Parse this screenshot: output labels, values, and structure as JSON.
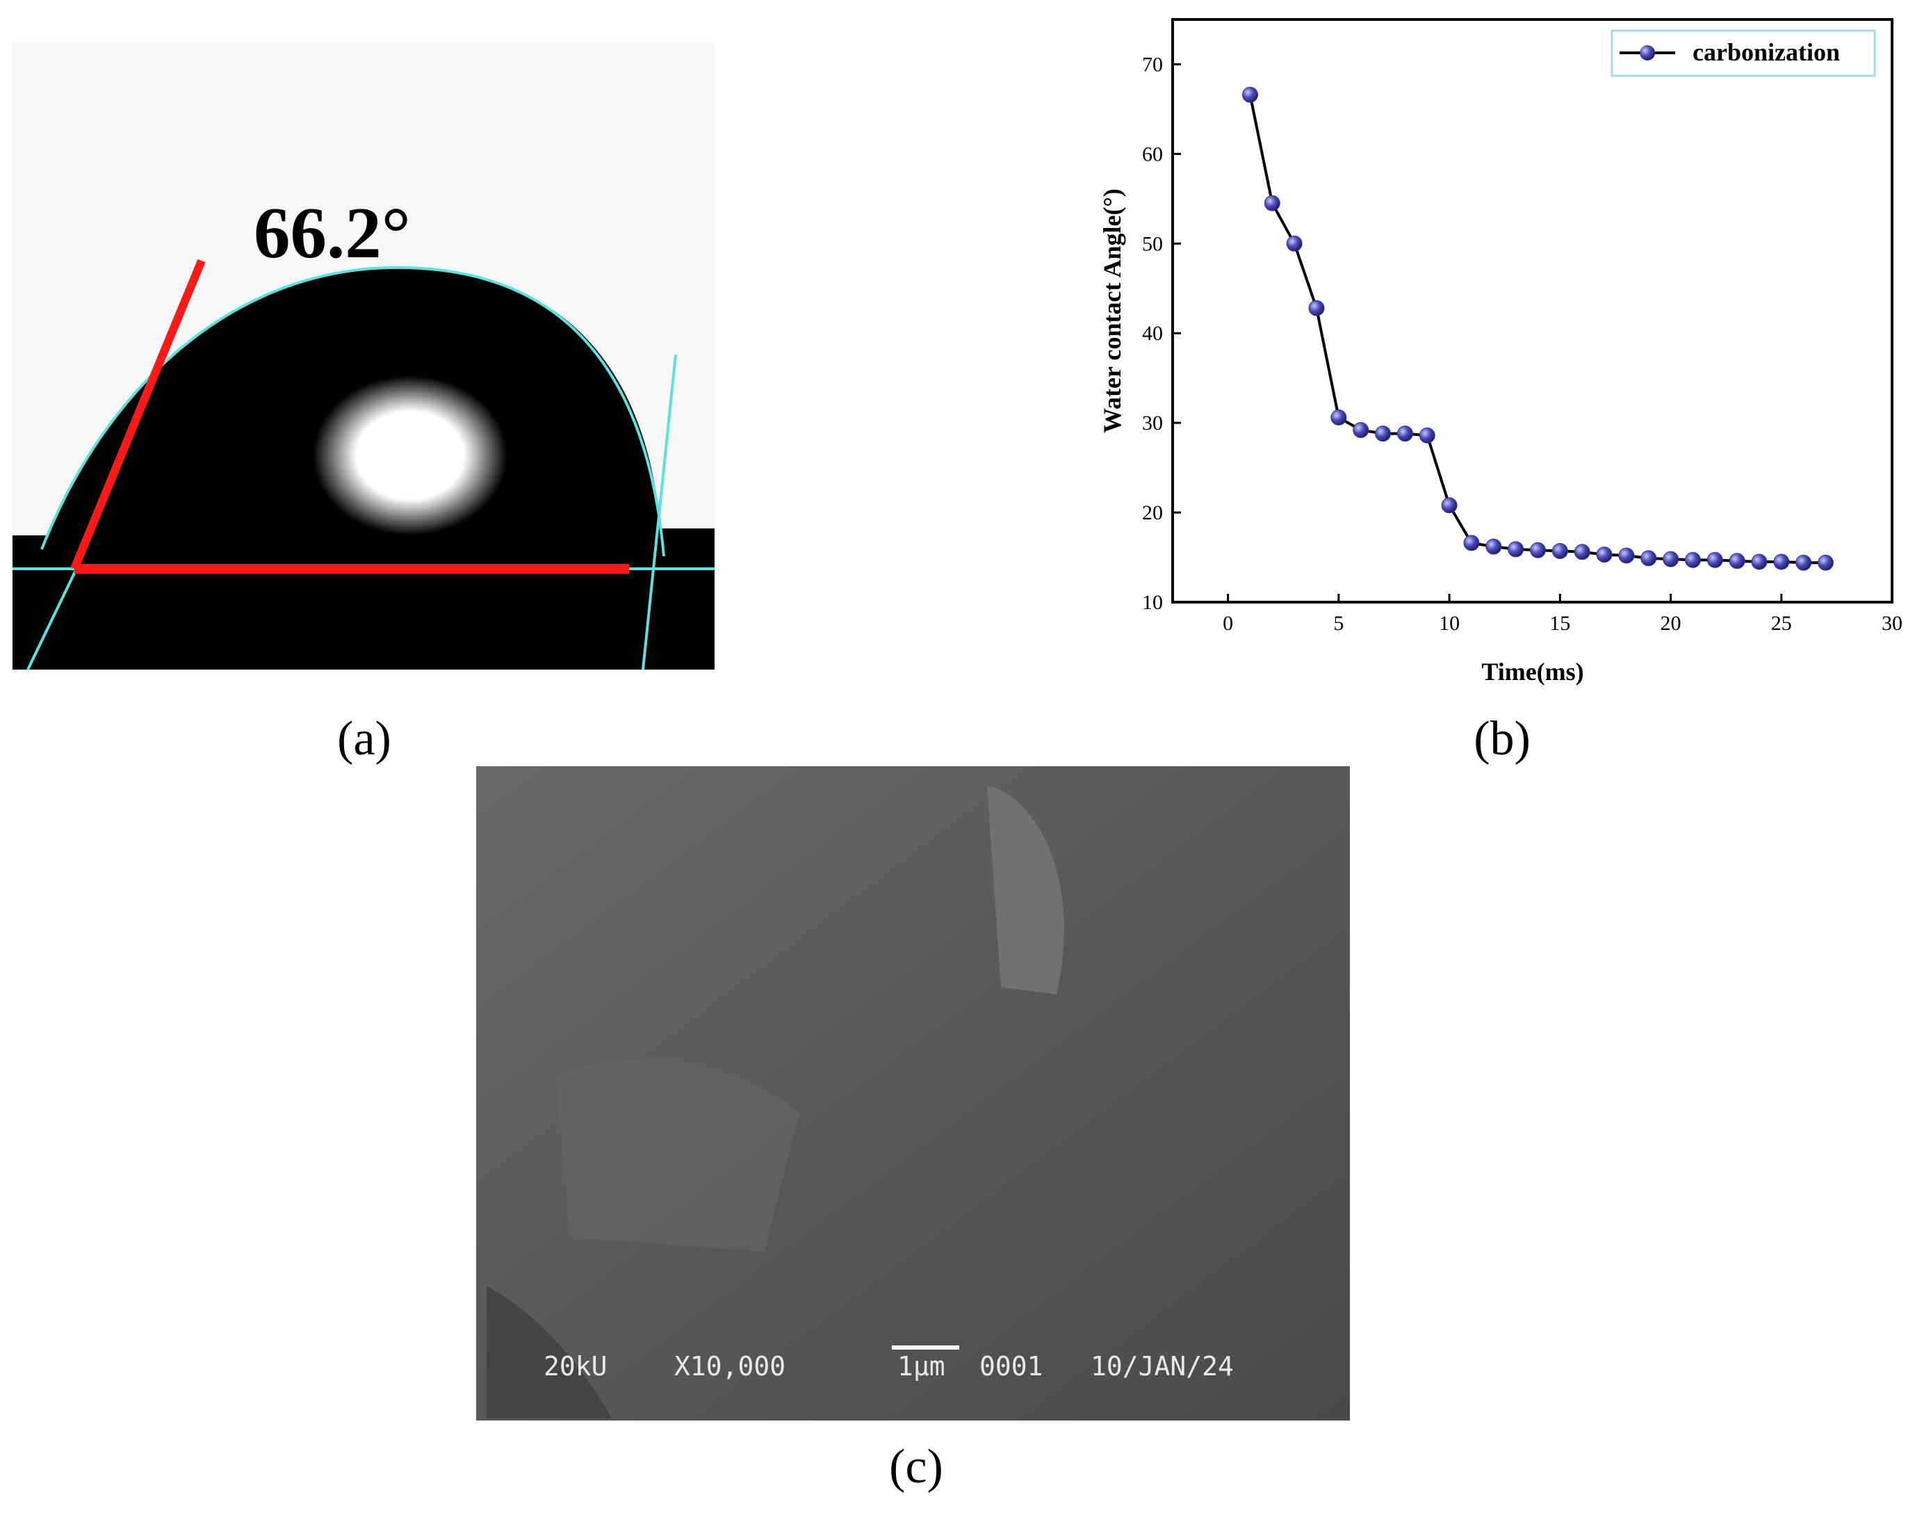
{
  "chart_data": {
    "type": "line",
    "x_label": "Time(ms)",
    "y_label": "Water contact Angle(°)",
    "x": [
      1,
      2,
      3,
      4,
      5,
      6,
      7,
      8,
      9,
      10,
      11,
      12,
      13,
      14,
      15,
      16,
      17,
      18,
      19,
      20,
      21,
      22,
      23,
      24,
      25,
      26,
      27
    ],
    "series": [
      {
        "name": "carbonization",
        "color": "#3a3aa0",
        "values": [
          66.6,
          54.5,
          50,
          42.8,
          30.6,
          29.2,
          28.8,
          28.8,
          28.6,
          20.8,
          16.6,
          16.2,
          15.9,
          15.8,
          15.7,
          15.6,
          15.3,
          15.2,
          14.9,
          14.8,
          14.7,
          14.7,
          14.6,
          14.5,
          14.5,
          14.4,
          14.4
        ]
      }
    ],
    "xlim": [
      -2.5,
      30
    ],
    "ylim": [
      10,
      75
    ],
    "xticks": [
      0,
      5,
      10,
      15,
      20,
      25,
      30
    ],
    "yticks": [
      10,
      20,
      30,
      40,
      50,
      60,
      70
    ],
    "legend": "upper right",
    "grid": false
  },
  "panels": {
    "a": {
      "label": "(a)",
      "annotation": "66.2°"
    },
    "b": {
      "label": "(b)"
    },
    "c": {
      "label": "(c)",
      "sem_info": [
        "20kU",
        "X10,000",
        "1μm",
        "0001",
        "10/JAN/24"
      ]
    }
  }
}
